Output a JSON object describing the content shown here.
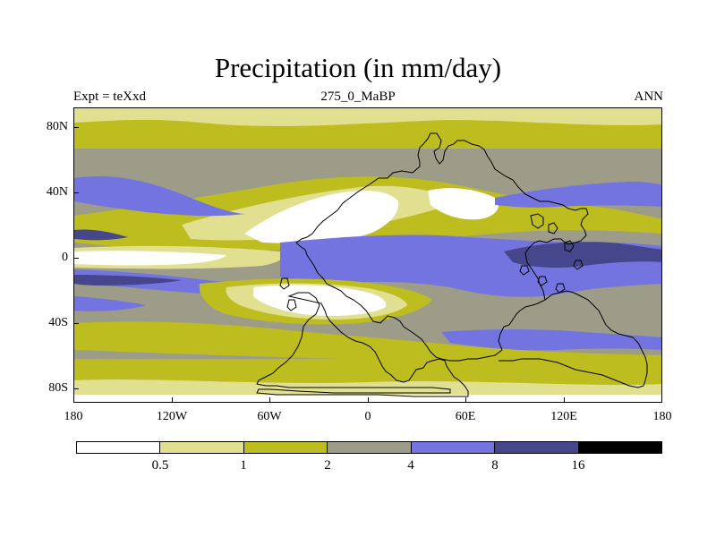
{
  "title": "Precipitation (in mm/day)",
  "subtitle_left": "Expt = teXxd",
  "subtitle_center": "275_0_MaBP",
  "subtitle_right": "ANN",
  "lat_labels": [
    "80N",
    "40N",
    "0",
    "40S",
    "80S"
  ],
  "lon_labels": [
    "180",
    "120W",
    "60W",
    "0",
    "60E",
    "120E",
    "180"
  ],
  "colorbar": {
    "levels": [
      "0.5",
      "1",
      "2",
      "4",
      "8",
      "16"
    ],
    "colors": [
      "#ffffff",
      "#e0e090",
      "#bdbd1f",
      "#9c9c88",
      "#7474e0",
      "#46468c",
      "#000000"
    ]
  },
  "palette": {
    "very_dry": "#ffffff",
    "dry": "#e0e090",
    "low": "#bdbd1f",
    "medium": "#9c9c88",
    "high": "#7474e0",
    "very_high": "#46468c",
    "extreme": "#000000"
  }
}
